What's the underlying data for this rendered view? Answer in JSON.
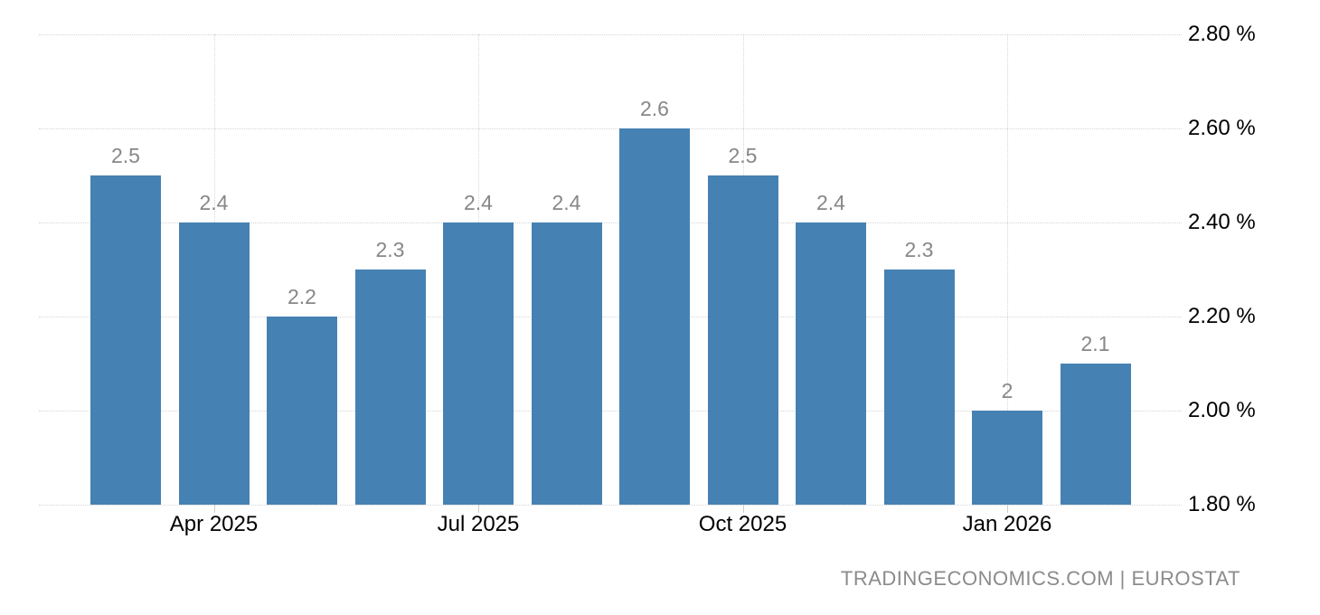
{
  "watermark": {
    "text": "TRADINGECONOMICS.COM | EUROSTAT"
  },
  "chart_data": {
    "type": "bar",
    "title": "",
    "values": [
      2.5,
      2.4,
      2.2,
      2.3,
      2.4,
      2.4,
      2.6,
      2.5,
      2.4,
      2.3,
      2,
      2.1
    ],
    "bar_labels": [
      "2.5",
      "2.4",
      "2.2",
      "2.3",
      "2.4",
      "2.4",
      "2.6",
      "2.5",
      "2.4",
      "2.3",
      "2",
      "2.1"
    ],
    "x_ticks": [
      {
        "label": "Apr 2025",
        "bar_index": 1
      },
      {
        "label": "Jul 2025",
        "bar_index": 4
      },
      {
        "label": "Oct 2025",
        "bar_index": 7
      },
      {
        "label": "Jan 2026",
        "bar_index": 10
      }
    ],
    "y_ticks": [
      {
        "label": "2.80 %",
        "value": 2.8
      },
      {
        "label": "2.60 %",
        "value": 2.6
      },
      {
        "label": "2.40 %",
        "value": 2.4
      },
      {
        "label": "2.20 %",
        "value": 2.2
      },
      {
        "label": "2.00 %",
        "value": 2.0
      },
      {
        "label": "1.80 %",
        "value": 1.8
      }
    ],
    "ylim": [
      1.8,
      2.8
    ],
    "grid": {
      "horizontal": true,
      "vertical_at_x_ticks": true,
      "style": "dotted"
    },
    "legend": "none",
    "xlabel": "",
    "ylabel": "",
    "colors": {
      "bar": "#4681b3",
      "grid": "#d6d6d6",
      "data_label": "#878787",
      "axis_label": "#000000",
      "watermark": "#8b8b8b"
    }
  }
}
